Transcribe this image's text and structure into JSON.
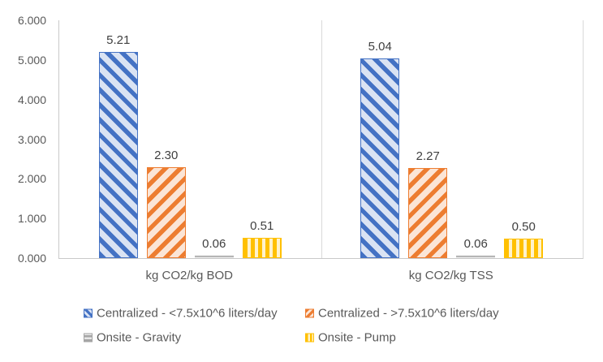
{
  "chart_data": {
    "type": "bar",
    "title": "",
    "xlabel": "",
    "ylabel": "",
    "categories": [
      "kg CO2/kg BOD",
      "kg CO2/kg TSS"
    ],
    "series": [
      {
        "name": "Centralized - <7.5x10^6 liters/day",
        "values": [
          5.21,
          5.04
        ],
        "labels": [
          "5.21",
          "5.04"
        ],
        "color": "#4472C4",
        "fill_light": "#DAE3F3",
        "pattern": "diag-down"
      },
      {
        "name": "Centralized - >7.5x10^6 liters/day",
        "values": [
          2.3,
          2.27
        ],
        "labels": [
          "2.30",
          "2.27"
        ],
        "color": "#ED7D31",
        "fill_light": "#FBE5D6",
        "pattern": "diag-up"
      },
      {
        "name": "Onsite - Gravity",
        "values": [
          0.06,
          0.06
        ],
        "labels": [
          "0.06",
          "0.06"
        ],
        "color": "#A5A5A5",
        "fill_light": "#E7E7E7",
        "pattern": "horizontal"
      },
      {
        "name": "Onsite - Pump",
        "values": [
          0.51,
          0.5
        ],
        "labels": [
          "0.51",
          "0.50"
        ],
        "color": "#FFC000",
        "fill_light": "#FFF2CC",
        "pattern": "vertical"
      }
    ],
    "y_ticks": [
      "6.000",
      "5.000",
      "4.000",
      "3.000",
      "2.000",
      "1.000",
      "0.000"
    ],
    "ylim": [
      0,
      6
    ],
    "grid": "vertical category separators only, no horizontal gridlines",
    "legend_position": "bottom, two rows x two columns",
    "data_labels": "above bars",
    "text_colors": {
      "axis": "#595959",
      "data_label": "#404040",
      "legend": "#595959"
    },
    "axis_line_color": "#C9C9C9"
  }
}
